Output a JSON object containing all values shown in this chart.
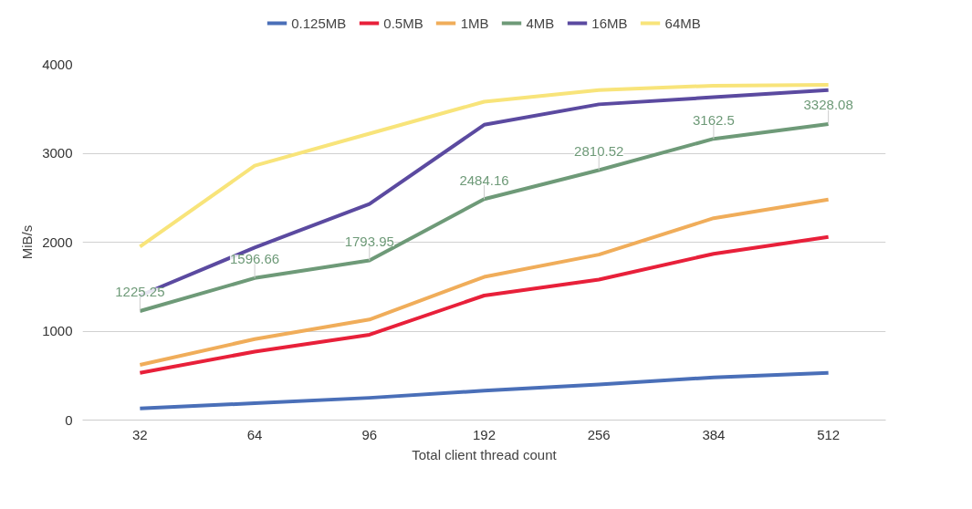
{
  "chart_data": {
    "type": "line",
    "xlabel": "Total client thread count",
    "ylabel": "MiB/s",
    "categories": [
      "32",
      "64",
      "96",
      "192",
      "256",
      "384",
      "512"
    ],
    "ylim": [
      0,
      4000
    ],
    "yticks": [
      0,
      1000,
      2000,
      3000,
      4000
    ],
    "grid": "y",
    "legend": "top",
    "marker": "none",
    "line_style": "solid",
    "series": [
      {
        "name": "0.125MB",
        "color": "#4a6fb8",
        "values": [
          130,
          190,
          250,
          330,
          400,
          480,
          530
        ]
      },
      {
        "name": "0.5MB",
        "color": "#e8203a",
        "values": [
          530,
          770,
          960,
          1400,
          1580,
          1870,
          2060
        ]
      },
      {
        "name": "1MB",
        "color": "#f0ad5a",
        "values": [
          620,
          910,
          1130,
          1610,
          1860,
          2270,
          2480
        ]
      },
      {
        "name": "4MB",
        "color": "#6e9a78",
        "values": [
          1225.25,
          1596.66,
          1793.95,
          2484.16,
          2810.52,
          3162.5,
          3328.08
        ],
        "value_labels": [
          "1225.25",
          "1596.66",
          "1793.95",
          "2484.16",
          "2810.52",
          "3162.5",
          "3328.08"
        ]
      },
      {
        "name": "16MB",
        "color": "#5b4aa0",
        "values": [
          1400,
          1940,
          2430,
          3320,
          3550,
          3630,
          3710
        ]
      },
      {
        "name": "64MB",
        "color": "#f8e47a",
        "values": [
          1950,
          2860,
          3220,
          3580,
          3710,
          3760,
          3770
        ]
      }
    ]
  }
}
